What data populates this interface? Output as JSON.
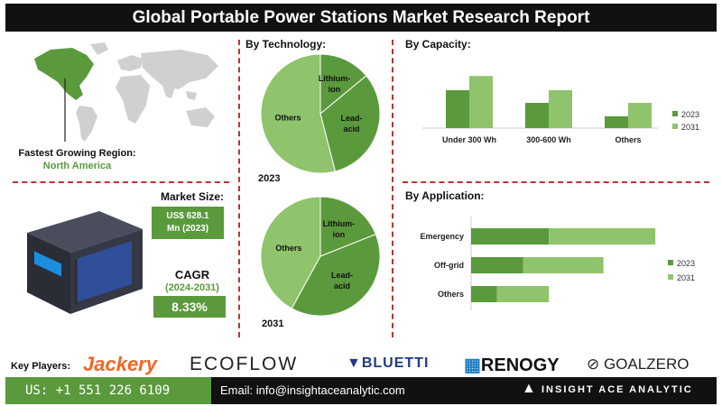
{
  "title": "Global Portable Power Stations Market Research Report",
  "region": {
    "label": "Fastest Growing Region:",
    "value": "North America"
  },
  "market_size": {
    "label": "Market Size:",
    "value_line1": "US$ 628.1",
    "value_line2": "Mn (2023)"
  },
  "cagr": {
    "label": "CAGR",
    "period": "(2024-2031)",
    "value": "8.33%"
  },
  "sections": {
    "technology": "By Technology:",
    "capacity": "By Capacity:",
    "application": "By Application:"
  },
  "key_players": {
    "label": "Key Players:",
    "names": [
      "Jackery",
      "ECOFLOW",
      "BLUETTI",
      "RENOGY",
      "GOALZERO"
    ]
  },
  "contact": {
    "phone": "US: +1 551 226 6109",
    "email": "Email: info@insightaceanalytic.com",
    "brand": "INSIGHT ACE ANALYTIC"
  },
  "colors": {
    "dark_green": "#5a9a3c",
    "light_green": "#8fc36c",
    "accent_red": "#b33",
    "orange": "#f26522"
  },
  "chart_data": [
    {
      "type": "pie",
      "title": "2023",
      "labels": [
        "Lithium-ion",
        "Lead-acid",
        "Others"
      ],
      "values": [
        14,
        32,
        54
      ]
    },
    {
      "type": "pie",
      "title": "2031",
      "labels": [
        "Lithium-ion",
        "Lead-acid",
        "Others"
      ],
      "values": [
        19,
        39,
        42
      ]
    },
    {
      "type": "bar",
      "title": "By Capacity:",
      "categories": [
        "Under 300 Wh",
        "300-600 Wh",
        "Others"
      ],
      "series": [
        {
          "name": "2023",
          "values": [
            48,
            32,
            15
          ]
        },
        {
          "name": "2031",
          "values": [
            66,
            48,
            32
          ]
        }
      ],
      "ylim": [
        0,
        80
      ],
      "legend": "right"
    },
    {
      "type": "bar",
      "orientation": "horizontal",
      "title": "By Application:",
      "categories": [
        "Emergency",
        "Off-grid",
        "Others"
      ],
      "series": [
        {
          "name": "2023",
          "values": [
            30,
            20,
            10
          ]
        },
        {
          "name": "2031",
          "values": [
            41,
            31,
            20
          ]
        }
      ],
      "stacked": true,
      "xlim": [
        0,
        80
      ],
      "legend": "right"
    }
  ]
}
